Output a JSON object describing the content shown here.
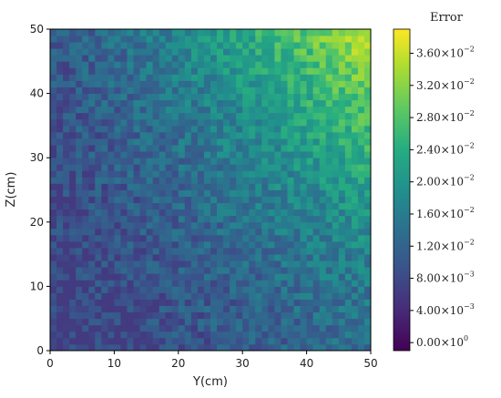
{
  "chart_data": {
    "type": "heatmap",
    "xlabel": "Y(cm)",
    "ylabel": "Z(cm)",
    "xlim": [
      0,
      50
    ],
    "ylim": [
      0,
      50
    ],
    "x_ticks": [
      "0",
      "10",
      "20",
      "30",
      "40",
      "50"
    ],
    "y_ticks": [
      "0",
      "10",
      "20",
      "30",
      "40",
      "50"
    ],
    "grid_cells": [
      50,
      50
    ],
    "colormap": "viridis",
    "value_trend": {
      "min_value_corner": "bottom-left",
      "max_value_corner": "top-right",
      "min_approx": 0.006,
      "max_approx": 0.036
    },
    "colorbar": {
      "title": "Error",
      "range": [
        -0.001,
        0.039
      ],
      "ticks": [
        {
          "value": 0.0,
          "mantissa": "0.00",
          "exponent": "0"
        },
        {
          "value": 0.004,
          "mantissa": "4.00",
          "exponent": "−3"
        },
        {
          "value": 0.008,
          "mantissa": "8.00",
          "exponent": "−3"
        },
        {
          "value": 0.012,
          "mantissa": "1.20",
          "exponent": "−2"
        },
        {
          "value": 0.016,
          "mantissa": "1.60",
          "exponent": "−2"
        },
        {
          "value": 0.02,
          "mantissa": "2.00",
          "exponent": "−2"
        },
        {
          "value": 0.024,
          "mantissa": "2.40",
          "exponent": "−2"
        },
        {
          "value": 0.028,
          "mantissa": "2.80",
          "exponent": "−2"
        },
        {
          "value": 0.032,
          "mantissa": "3.20",
          "exponent": "−2"
        },
        {
          "value": 0.036,
          "mantissa": "3.60",
          "exponent": "−2"
        }
      ]
    }
  }
}
